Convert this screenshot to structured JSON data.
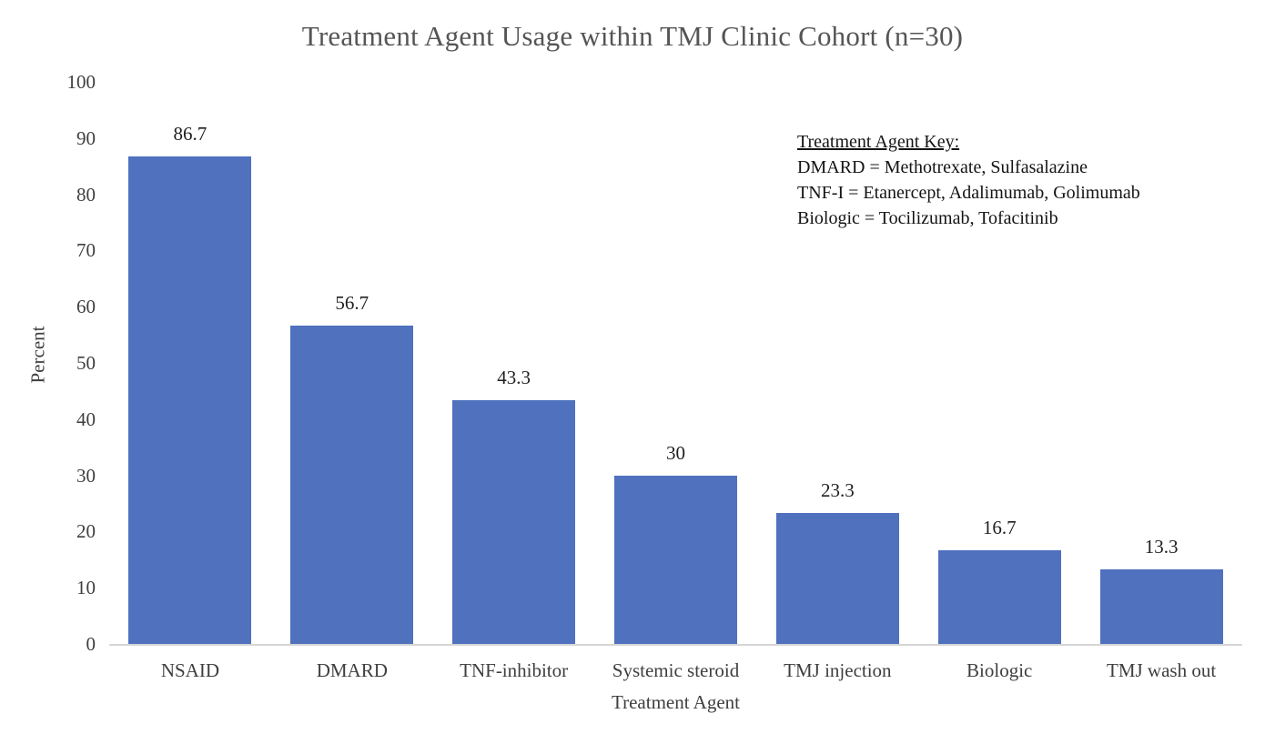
{
  "chart": {
    "title": "Treatment Agent Usage within TMJ Clinic Cohort (n=30)",
    "y_axis_label": "Percent",
    "x_axis_label": "Treatment Agent"
  },
  "key": {
    "heading": "Treatment Agent Key:",
    "lines": [
      "DMARD = Methotrexate, Sulfasalazine",
      "TNF-I = Etanercept, Adalimumab, Golimumab",
      "Biologic = Tocilizumab, Tofacitinib"
    ]
  },
  "chart_data": {
    "type": "bar",
    "title": "Treatment Agent Usage within TMJ Clinic Cohort (n=30)",
    "categories": [
      "NSAID",
      "DMARD",
      "TNF-inhibitor",
      "Systemic steroid",
      "TMJ injection",
      "Biologic",
      "TMJ wash out"
    ],
    "values": [
      86.7,
      56.7,
      43.3,
      30,
      23.3,
      16.7,
      13.3
    ],
    "xlabel": "Treatment Agent",
    "ylabel": "Percent",
    "ylim": [
      0,
      100
    ],
    "yticks": [
      0,
      10,
      20,
      30,
      40,
      50,
      60,
      70,
      80,
      90,
      100
    ],
    "grid": false,
    "legend_position": "none",
    "data_labels": true,
    "bar_color": "#4f71be",
    "axis_line_color": "#d6d6d6",
    "title_color": "#555555",
    "tick_label_color": "#3e3e3e"
  }
}
